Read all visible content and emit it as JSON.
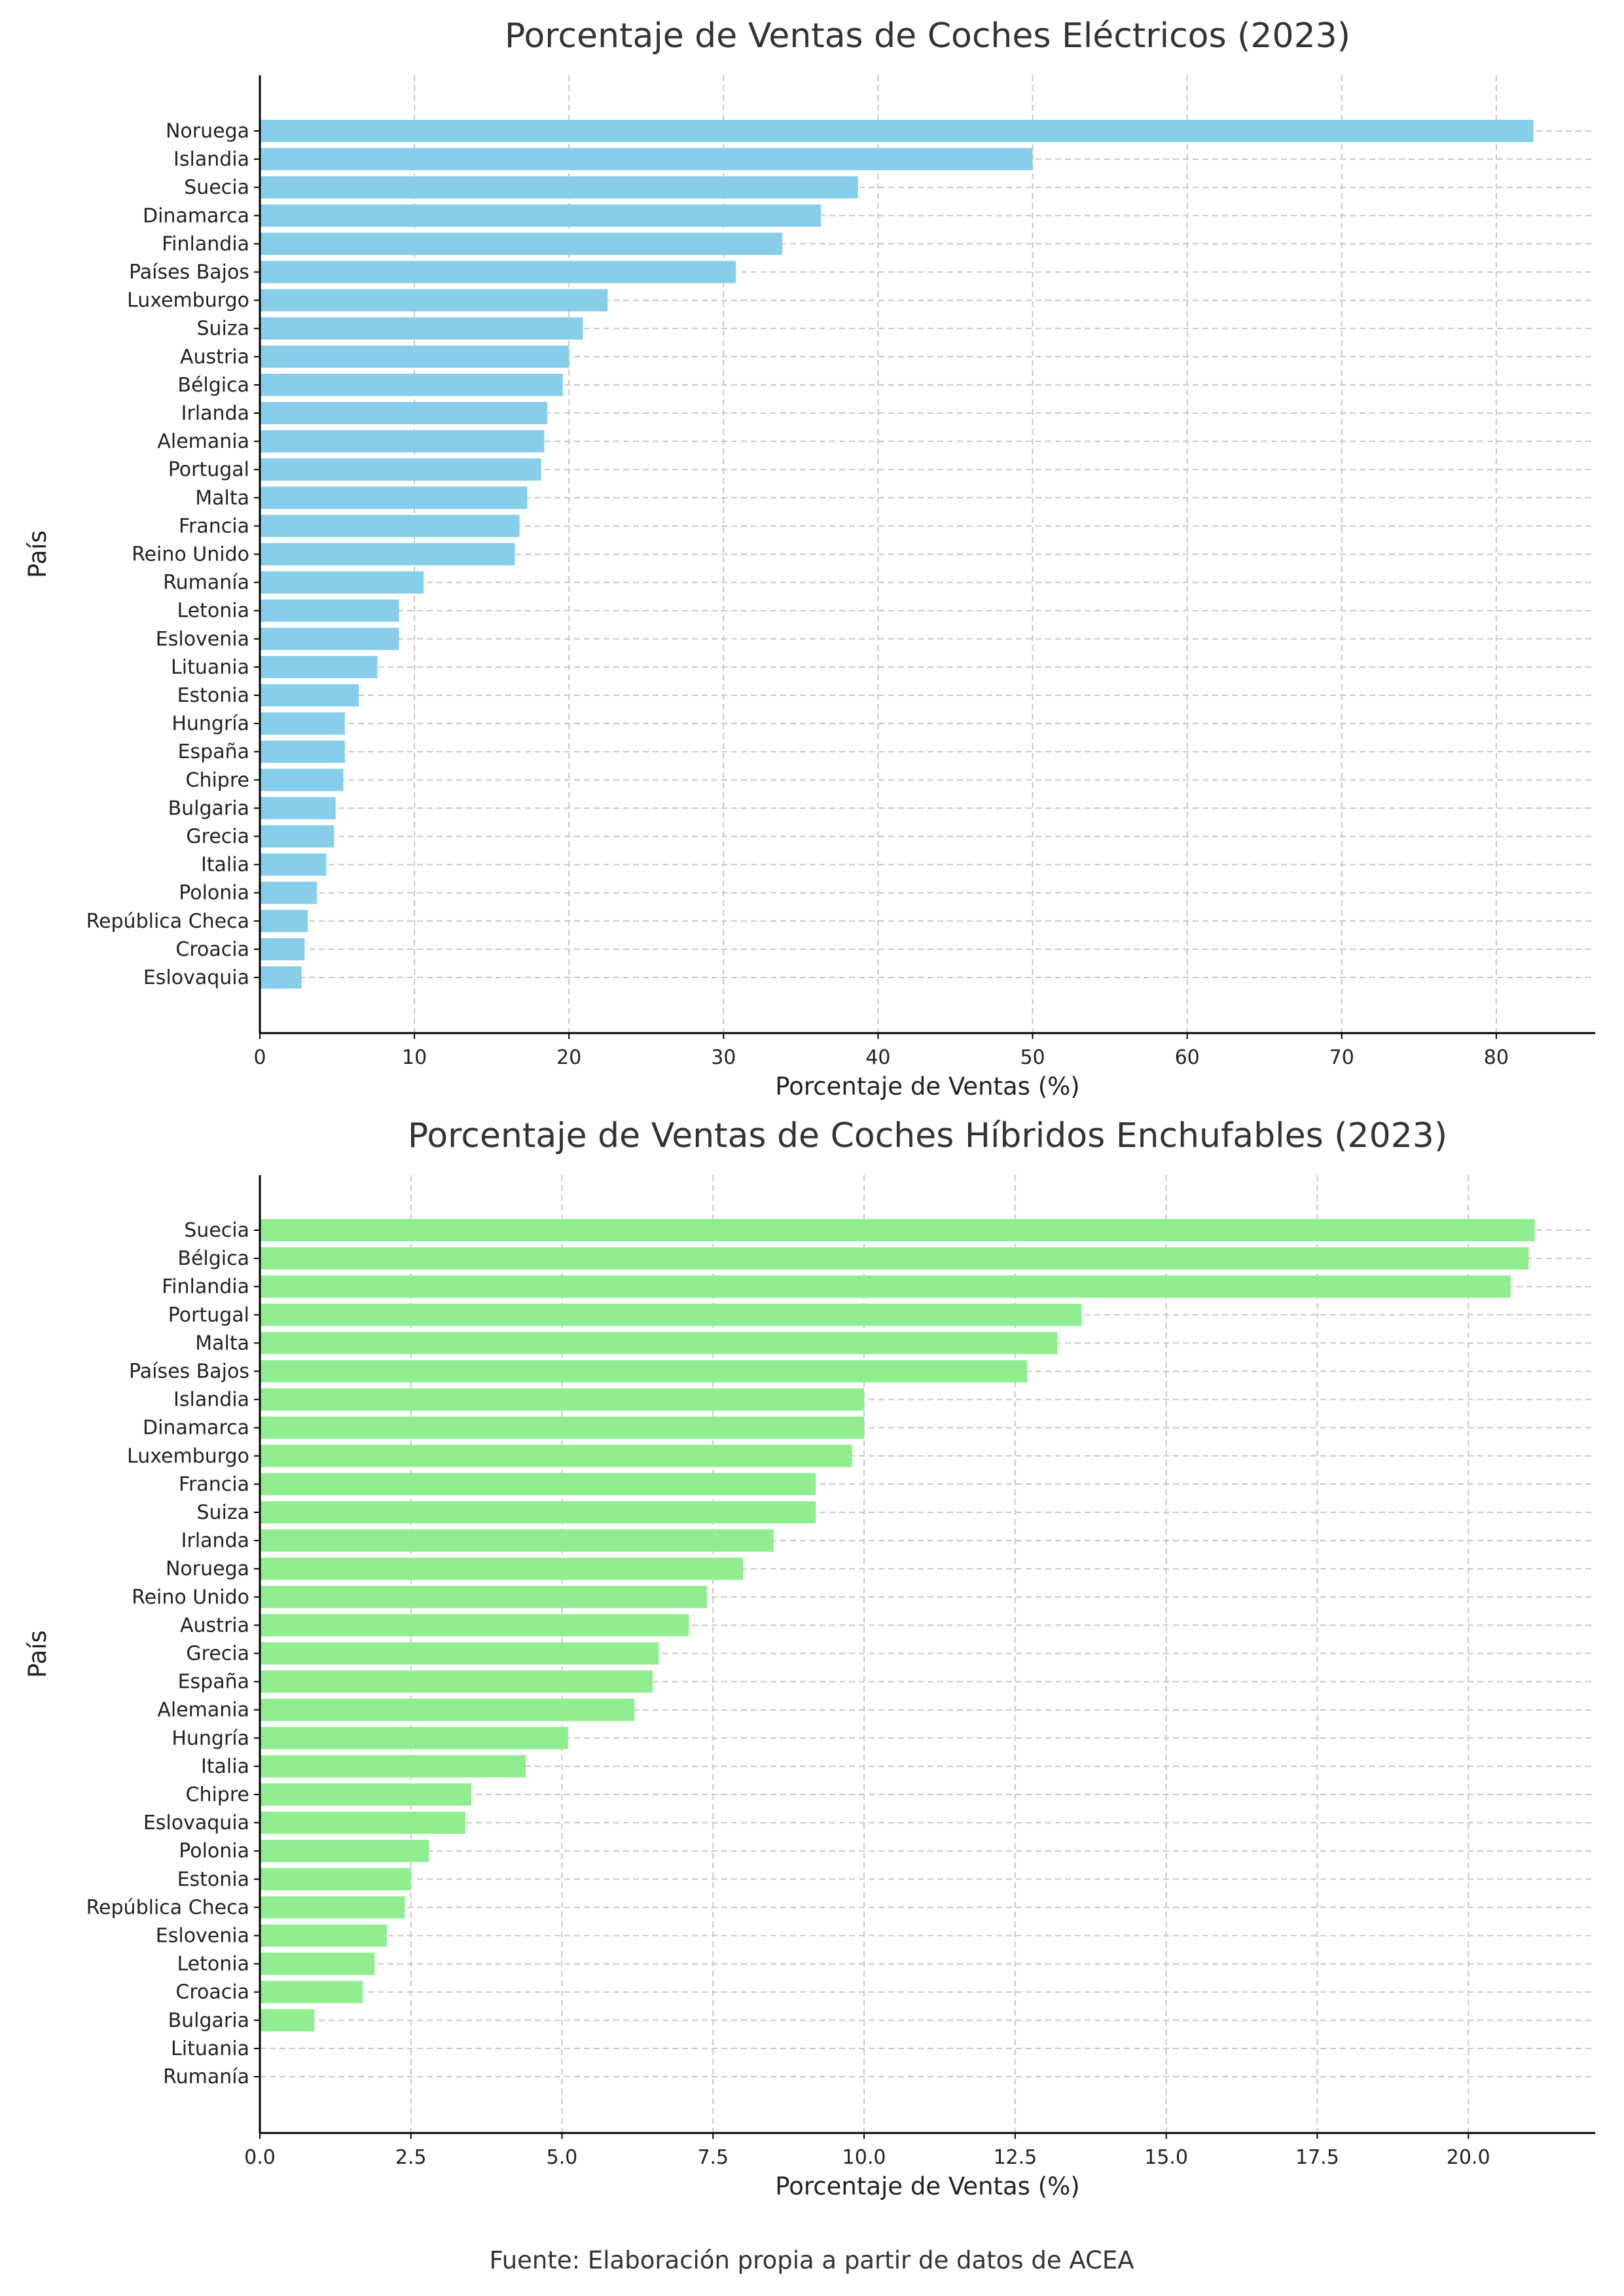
{
  "chart_data": [
    {
      "type": "bar",
      "orientation": "horizontal",
      "title": "Porcentaje de Ventas de Coches Eléctricos (2023)",
      "xlabel": "Porcentaje de Ventas (%)",
      "ylabel": "País",
      "xlim": [
        0,
        86.4
      ],
      "xticks": [
        "0",
        "10",
        "20",
        "30",
        "40",
        "50",
        "60",
        "70",
        "80"
      ],
      "xtick_values": [
        0,
        10,
        20,
        30,
        40,
        50,
        60,
        70,
        80
      ],
      "grid": true,
      "color": "#87CEEB",
      "categories": [
        "Noruega",
        "Islandia",
        "Suecia",
        "Dinamarca",
        "Finlandia",
        "Países Bajos",
        "Luxemburgo",
        "Suiza",
        "Austria",
        "Bélgica",
        "Irlanda",
        "Alemania",
        "Portugal",
        "Malta",
        "Francia",
        "Reino Unido",
        "Rumanía",
        "Letonia",
        "Eslovenia",
        "Lituania",
        "Estonia",
        "Hungría",
        "España",
        "Chipre",
        "Bulgaria",
        "Grecia",
        "Italia",
        "Polonia",
        "República Checa",
        "Croacia",
        "Eslovaquia"
      ],
      "values": [
        82.4,
        50.0,
        38.7,
        36.3,
        33.8,
        30.8,
        22.5,
        20.9,
        20.0,
        19.6,
        18.6,
        18.4,
        18.2,
        17.3,
        16.8,
        16.5,
        10.6,
        9.0,
        9.0,
        7.6,
        6.4,
        5.5,
        5.5,
        5.4,
        4.9,
        4.8,
        4.3,
        3.7,
        3.1,
        2.9,
        2.7
      ]
    },
    {
      "type": "bar",
      "orientation": "horizontal",
      "title": "Porcentaje de Ventas de Coches Híbridos Enchufables (2023)",
      "xlabel": "Porcentaje de Ventas (%)",
      "ylabel": "País",
      "xlim": [
        0,
        22.1
      ],
      "xticks": [
        "0.0",
        "2.5",
        "5.0",
        "7.5",
        "10.0",
        "12.5",
        "15.0",
        "17.5",
        "20.0"
      ],
      "xtick_values": [
        0,
        2.5,
        5,
        7.5,
        10,
        12.5,
        15,
        17.5,
        20
      ],
      "grid": true,
      "color": "#90EE90",
      "categories": [
        "Suecia",
        "Bélgica",
        "Finlandia",
        "Portugal",
        "Malta",
        "Países Bajos",
        "Islandia",
        "Dinamarca",
        "Luxemburgo",
        "Francia",
        "Suiza",
        "Irlanda",
        "Noruega",
        "Reino Unido",
        "Austria",
        "Grecia",
        "España",
        "Alemania",
        "Hungría",
        "Italia",
        "Chipre",
        "Eslovaquia",
        "Polonia",
        "Estonia",
        "República Checa",
        "Eslovenia",
        "Letonia",
        "Croacia",
        "Bulgaria",
        "Lituania",
        "Rumanía"
      ],
      "values": [
        21.1,
        21.0,
        20.7,
        13.6,
        13.2,
        12.7,
        10.0,
        10.0,
        9.8,
        9.2,
        9.2,
        8.5,
        8.0,
        7.4,
        7.1,
        6.6,
        6.5,
        6.2,
        5.1,
        4.4,
        3.5,
        3.4,
        2.8,
        2.5,
        2.4,
        2.1,
        1.9,
        1.7,
        0.9,
        0.0,
        0.0
      ]
    }
  ],
  "footer": {
    "source": "Fuente: Elaboración propia a partir de datos de ACEA"
  }
}
